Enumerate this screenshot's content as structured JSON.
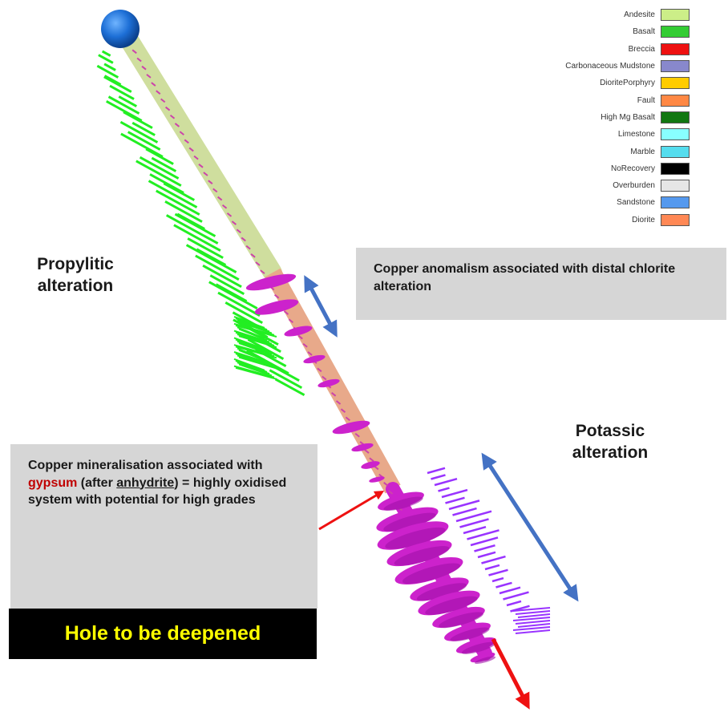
{
  "legend": {
    "items": [
      {
        "label": "Andesite",
        "color": "#ccee88"
      },
      {
        "label": "Basalt",
        "color": "#33cc33"
      },
      {
        "label": "Breccia",
        "color": "#ee1111"
      },
      {
        "label": "Carbonaceous Mudstone",
        "color": "#8888cc"
      },
      {
        "label": "DioritePorphyry",
        "color": "#ffcc00"
      },
      {
        "label": "Fault",
        "color": "#ff8844"
      },
      {
        "label": "High Mg Basalt",
        "color": "#117711"
      },
      {
        "label": "Limestone",
        "color": "#88ffff"
      },
      {
        "label": "Marble",
        "color": "#55ddee"
      },
      {
        "label": "NoRecovery",
        "color": "#000000"
      },
      {
        "label": "Overburden",
        "color": "#e6e6e6"
      },
      {
        "label": "Sandstone",
        "color": "#5599ee"
      },
      {
        "label": "Diorite",
        "color": "#ff8855"
      }
    ]
  },
  "labels": {
    "propylitic": "Propylitic alteration",
    "potassic": "Potassic alteration"
  },
  "callouts": {
    "chlorite": "Copper anomalism associated with distal chlorite alteration",
    "gypsum": {
      "prefix": "Copper mineralisation associated with ",
      "gypsum": "gypsum",
      "middle": " (after ",
      "anhydrite": "anhydrite",
      "suffix": ") = highly oxidised system with potential for high grades"
    },
    "deepen": "Hole to be deepened"
  },
  "colors": {
    "collar_ball": "#1d6fd6",
    "upper_hole": "#d7e6a4",
    "lower_hole": "#e8a98a",
    "mineral_discs": "#cc22cc",
    "propylitic_bars": "#22ee22",
    "potassic_bars": "#9933ff",
    "double_arrow": "#4472c4",
    "red_arrow": "#ee1111"
  }
}
